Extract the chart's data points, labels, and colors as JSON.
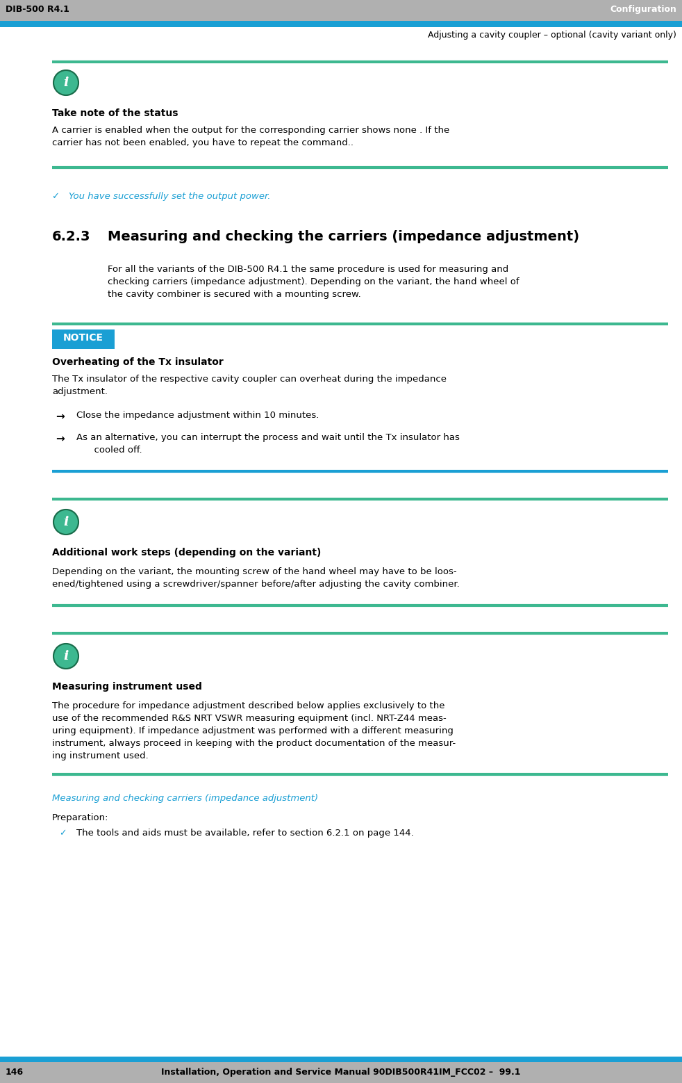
{
  "header_bg": "#b0b0b0",
  "header_blue_bar": "#1a9fd4",
  "header_left_text": "DIB-500 R4.1",
  "header_right_text": "Configuration",
  "subheader_text": "Adjusting a cavity coupler – optional (cavity variant only)",
  "green_bar_color": "#3db890",
  "blue_bar_color": "#1a9fd4",
  "notice_bg": "#1a9fd4",
  "notice_label_text": "NOTICE",
  "blue_text_color": "#1a9fd4",
  "footer_bg": "#b0b0b0",
  "footer_left_text": "146",
  "footer_center_text": "Installation, Operation and Service Manual 90DIB500R41IM_FCC02 –  99.1",
  "body_bg": "#ffffff",
  "info_icon_color": "#3db890",
  "info_icon_border": "#1a6b4a"
}
